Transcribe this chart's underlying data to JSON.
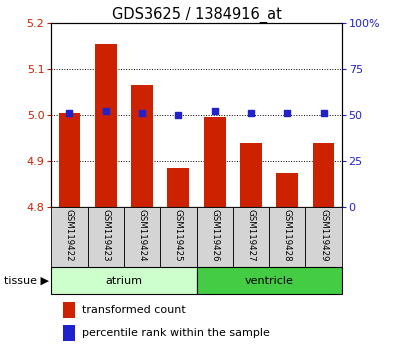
{
  "title": "GDS3625 / 1384916_at",
  "samples": [
    "GSM119422",
    "GSM119423",
    "GSM119424",
    "GSM119425",
    "GSM119426",
    "GSM119427",
    "GSM119428",
    "GSM119429"
  ],
  "red_values": [
    5.005,
    5.155,
    5.065,
    4.885,
    4.995,
    4.94,
    4.875,
    4.94
  ],
  "blue_values": [
    51,
    52,
    51,
    50,
    52,
    51,
    51,
    51
  ],
  "ylim_left": [
    4.8,
    5.2
  ],
  "ylim_right": [
    0,
    100
  ],
  "yticks_left": [
    4.8,
    4.9,
    5.0,
    5.1,
    5.2
  ],
  "yticks_right": [
    0,
    25,
    50,
    75,
    100
  ],
  "bar_color": "#cc2200",
  "dot_color": "#2222cc",
  "tissue_groups": [
    {
      "label": "atrium",
      "samples": [
        0,
        1,
        2,
        3
      ],
      "color": "#ccffcc"
    },
    {
      "label": "ventricle",
      "samples": [
        4,
        5,
        6,
        7
      ],
      "color": "#44cc44"
    }
  ],
  "sample_box_color": "#d4d4d4",
  "background_color": "#ffffff",
  "grid_color": "#000000",
  "title_fontsize": 10.5,
  "tick_fontsize": 8,
  "sample_fontsize": 6.2,
  "legend_fontsize": 8,
  "tissue_fontsize": 8,
  "label_color_left": "#cc2200",
  "label_color_right": "#2222cc",
  "grid_yticks": [
    4.9,
    5.0,
    5.1
  ],
  "bar_width": 0.6
}
